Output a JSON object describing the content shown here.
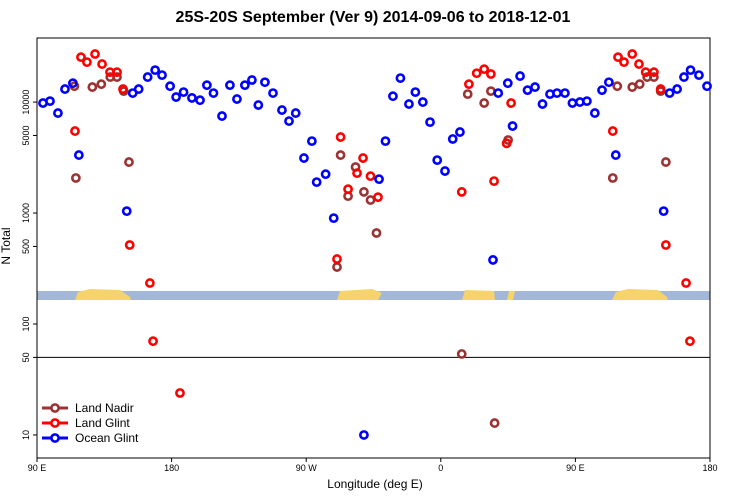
{
  "chart_data": {
    "type": "scatter",
    "title": "25S-20S September (Ver 9)   2014-09-06 to 2018-12-01",
    "x_label": "Longitude (deg E)",
    "y_label": "N Total",
    "log_y": true,
    "legend": "bottom-left",
    "hline": 50,
    "xlim": [
      90,
      540
    ],
    "ylim": [
      6.2,
      37800
    ],
    "xticks": [
      {
        "value": 90,
        "label": "90 E"
      },
      180,
      {
        "value": 270,
        "label": "90 W"
      },
      {
        "value": 360,
        "label": "0"
      },
      {
        "value": 450,
        "label": "90 E"
      },
      {
        "value": 540,
        "label": "180"
      }
    ],
    "yticks": [
      10,
      50,
      100,
      500,
      1000,
      5000,
      10000
    ],
    "series": [
      {
        "name": "Land Nadir",
        "color": "#9b3333",
        "x": [
          116,
          115,
          127,
          133,
          139,
          143.5,
          148,
          151.5,
          290.6,
          293,
          298,
          303,
          308.6,
          313,
          317,
          374,
          378,
          389,
          393.5,
          396,
          405,
          475,
          478,
          488,
          493,
          498,
          502.5,
          507,
          510.5
        ],
        "values": [
          2070,
          13900,
          13650,
          14500,
          16800,
          16800,
          12550,
          2880,
          326,
          3330,
          1420,
          2600,
          1550,
          1310,
          661,
          53.7,
          11800,
          9800,
          12550,
          12.8,
          4550,
          2070,
          13900,
          13650,
          14500,
          16800,
          16800,
          12550,
          2880
        ]
      },
      {
        "name": "Land Glint",
        "color": "#ff0000",
        "x": [
          115.4,
          119.4,
          123.4,
          128.8,
          133.5,
          138.8,
          143.5,
          147.5,
          152,
          165.5,
          167.6,
          185.6,
          290.6,
          293,
          298,
          304,
          308,
          313,
          318,
          374,
          378.8,
          384,
          389,
          393.5,
          395.6,
          404,
          407,
          475,
          478.5,
          482.5,
          488,
          492.5,
          497,
          502.5,
          507,
          510.5,
          524,
          526.6
        ],
        "values": [
          5480,
          25400,
          22900,
          27100,
          22000,
          18600,
          18600,
          13100,
          515,
          234,
          70,
          23.9,
          385,
          4840,
          1640,
          2290,
          3130,
          2150,
          1390,
          1550,
          14500,
          18200,
          19800,
          17900,
          1940,
          4250,
          9800,
          5480,
          25400,
          22900,
          27100,
          22000,
          18600,
          18600,
          13100,
          515,
          234,
          70
        ]
      },
      {
        "name": "Ocean Glint",
        "color": "#0000ff",
        "x": [
          94,
          98.7,
          104,
          108.7,
          114,
          118,
          150,
          154,
          158,
          164,
          169,
          173.6,
          179,
          183,
          188,
          193.6,
          199,
          203.6,
          208,
          213.7,
          219,
          223.7,
          229,
          233.7,
          238,
          242.4,
          247.8,
          253.8,
          258.5,
          263,
          268.5,
          273.8,
          277,
          283,
          288.4,
          308.6,
          318.7,
          323,
          328,
          333,
          338.7,
          343,
          348,
          352.8,
          357.6,
          362.8,
          368,
          372.8,
          394.9,
          398.4,
          404.8,
          408,
          413,
          418,
          423,
          428,
          433,
          437.7,
          443,
          448,
          453,
          457.7,
          463,
          467.8,
          472.4,
          477,
          509,
          513,
          518,
          522.6,
          527,
          532.6,
          538
        ],
        "values": [
          9800,
          10200,
          7960,
          13100,
          14800,
          3330,
          1040,
          12050,
          13100,
          16800,
          19400,
          17500,
          13900,
          11100,
          12300,
          10900,
          10400,
          14200,
          12050,
          7480,
          14200,
          10650,
          14200,
          15800,
          9400,
          15100,
          12050,
          8470,
          6740,
          7960,
          3130,
          4450,
          1900,
          2240,
          900,
          10,
          2020,
          4450,
          11300,
          16450,
          9600,
          12300,
          10000,
          6600,
          3000,
          2390,
          4650,
          5370,
          378,
          12050,
          14800,
          6080,
          17150,
          12800,
          13650,
          9600,
          11800,
          12050,
          12050,
          9800,
          10000,
          10200,
          7960,
          12800,
          15100,
          3330,
          1040,
          12050,
          13100,
          16800,
          19400,
          17500,
          13900
        ]
      }
    ]
  }
}
